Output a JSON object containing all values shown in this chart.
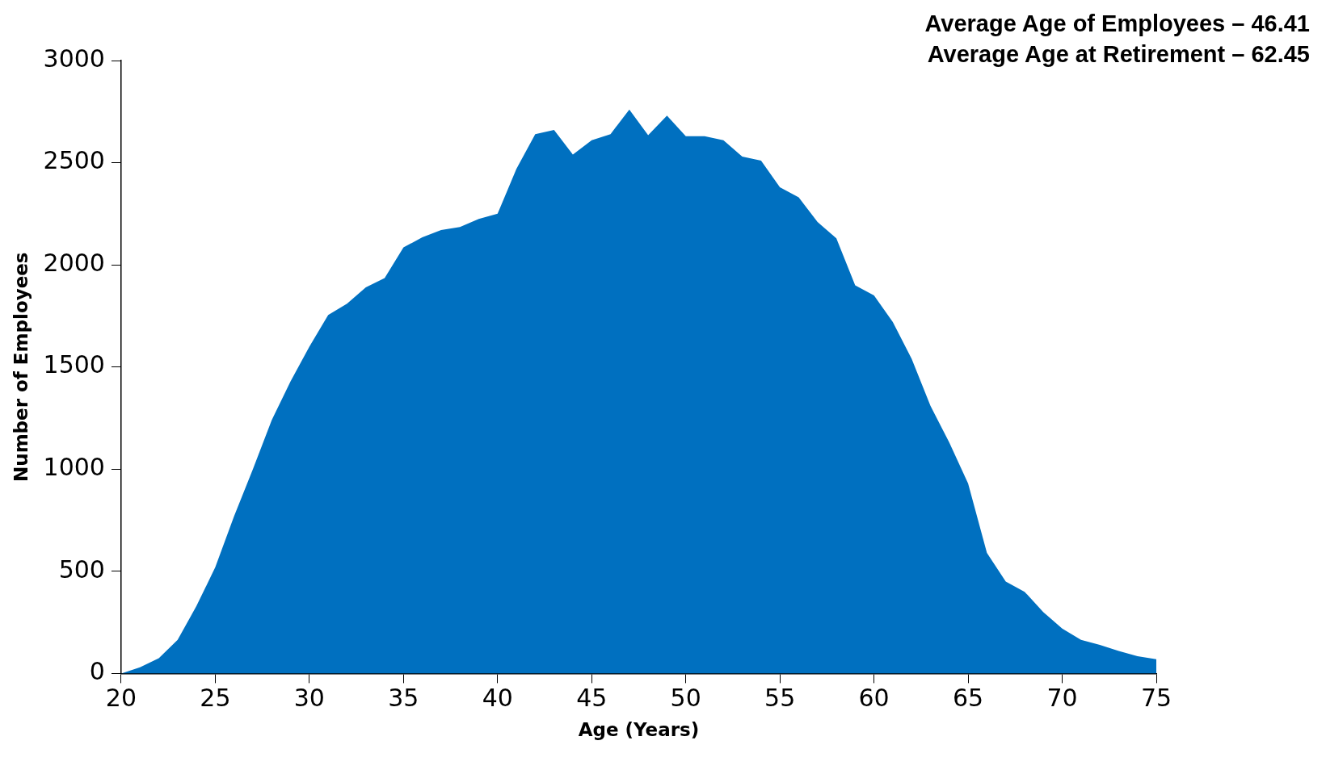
{
  "chart_data": {
    "type": "area",
    "xlabel": "Age (Years)",
    "ylabel": "Number of Employees",
    "annotations": [
      "Average Age of Employees – 46.41",
      "Average Age at Retirement – 62.45"
    ],
    "x": [
      20,
      21,
      22,
      23,
      24,
      25,
      26,
      27,
      28,
      29,
      30,
      31,
      32,
      33,
      34,
      35,
      36,
      37,
      38,
      39,
      40,
      41,
      42,
      43,
      44,
      45,
      46,
      47,
      48,
      49,
      50,
      51,
      52,
      53,
      54,
      55,
      56,
      57,
      58,
      59,
      60,
      61,
      62,
      63,
      64,
      65,
      66,
      67,
      68,
      69,
      70,
      71,
      72,
      73,
      74,
      75
    ],
    "series": [
      {
        "color": "#0070c0",
        "values": [
          0,
          30,
          75,
          165,
          330,
          520,
          770,
          1000,
          1240,
          1430,
          1600,
          1755,
          1810,
          1890,
          1935,
          2085,
          2135,
          2170,
          2185,
          2225,
          2250,
          2470,
          2640,
          2660,
          2540,
          2610,
          2640,
          2760,
          2635,
          2730,
          2630,
          2630,
          2610,
          2530,
          2510,
          2380,
          2330,
          2210,
          2130,
          1900,
          1850,
          1720,
          1540,
          1310,
          1130,
          930,
          590,
          450,
          400,
          300,
          220,
          165,
          140,
          110,
          85,
          70
        ]
      }
    ],
    "xlim": [
      20,
      75
    ],
    "xticks": [
      20,
      25,
      30,
      35,
      40,
      45,
      50,
      55,
      60,
      65,
      70,
      75
    ],
    "ylim": [
      0,
      3000
    ],
    "yticks": [
      0,
      500,
      1000,
      1500,
      2000,
      2500,
      3000
    ],
    "grid": false,
    "legend": false
  }
}
